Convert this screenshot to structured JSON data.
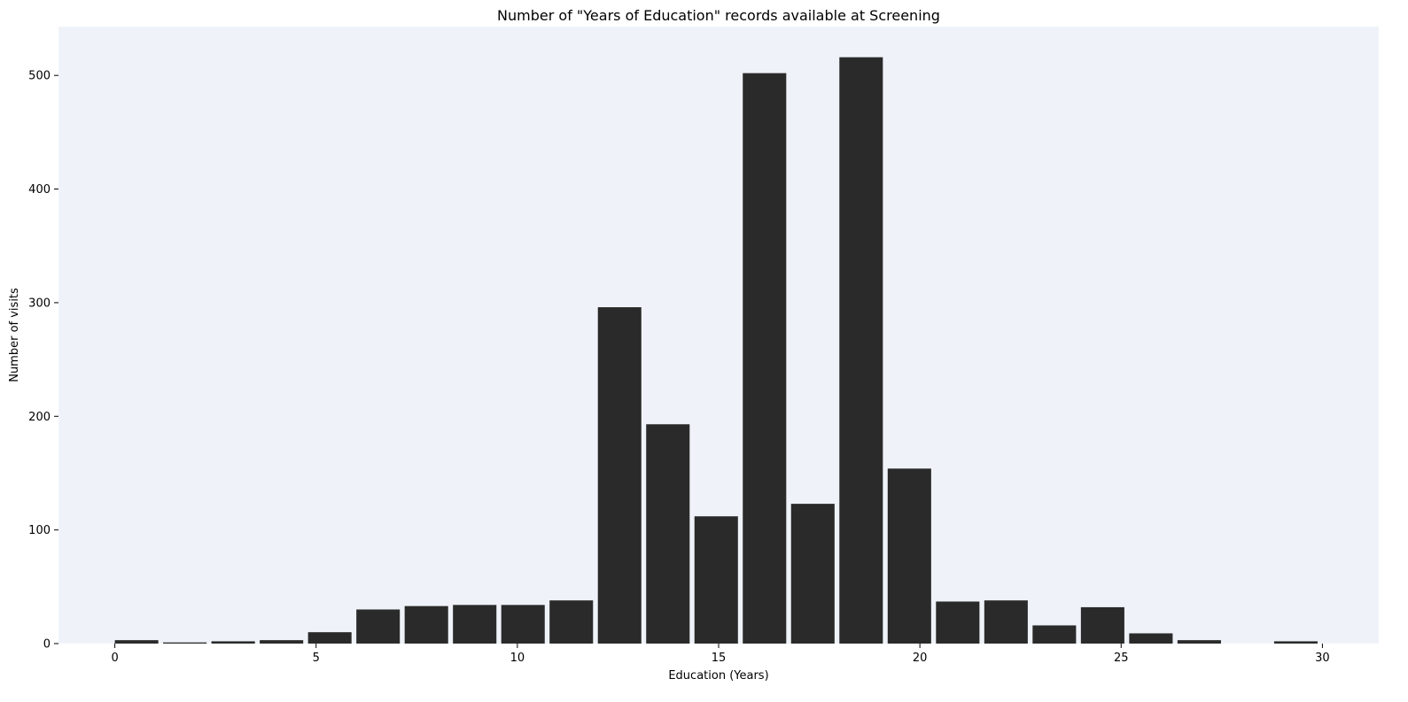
{
  "chart_data": {
    "type": "bar",
    "title": "Number of \"Years of Education\" records available at Screening",
    "xlabel": "Education (Years)",
    "ylabel": "Number of visits",
    "xlim": [
      -1.4,
      31.4
    ],
    "ylim": [
      0,
      543
    ],
    "xticks": [
      0,
      5,
      10,
      15,
      20,
      25,
      30
    ],
    "yticks": [
      0,
      100,
      200,
      300,
      400,
      500
    ],
    "grid": false,
    "bin_width": 1.2,
    "bar_fraction": 0.9,
    "bins": [
      {
        "left": 0.0,
        "value": 3
      },
      {
        "left": 1.2,
        "value": 1
      },
      {
        "left": 2.4,
        "value": 2
      },
      {
        "left": 3.6,
        "value": 3
      },
      {
        "left": 4.8,
        "value": 10
      },
      {
        "left": 6.0,
        "value": 30
      },
      {
        "left": 7.2,
        "value": 33
      },
      {
        "left": 8.4,
        "value": 34
      },
      {
        "left": 9.6,
        "value": 34
      },
      {
        "left": 10.8,
        "value": 38
      },
      {
        "left": 12.0,
        "value": 296
      },
      {
        "left": 13.2,
        "value": 193
      },
      {
        "left": 14.4,
        "value": 112
      },
      {
        "left": 15.6,
        "value": 502
      },
      {
        "left": 16.8,
        "value": 123
      },
      {
        "left": 18.0,
        "value": 516
      },
      {
        "left": 19.2,
        "value": 154
      },
      {
        "left": 20.4,
        "value": 37
      },
      {
        "left": 21.6,
        "value": 38
      },
      {
        "left": 22.8,
        "value": 16
      },
      {
        "left": 24.0,
        "value": 32
      },
      {
        "left": 25.2,
        "value": 9
      },
      {
        "left": 26.4,
        "value": 3
      },
      {
        "left": 27.6,
        "value": 0
      },
      {
        "left": 28.8,
        "value": 2
      }
    ],
    "colors": {
      "bar": "#2a2a2a",
      "plot_background": "#eff3f9",
      "figure_background": "#ffffff"
    }
  }
}
